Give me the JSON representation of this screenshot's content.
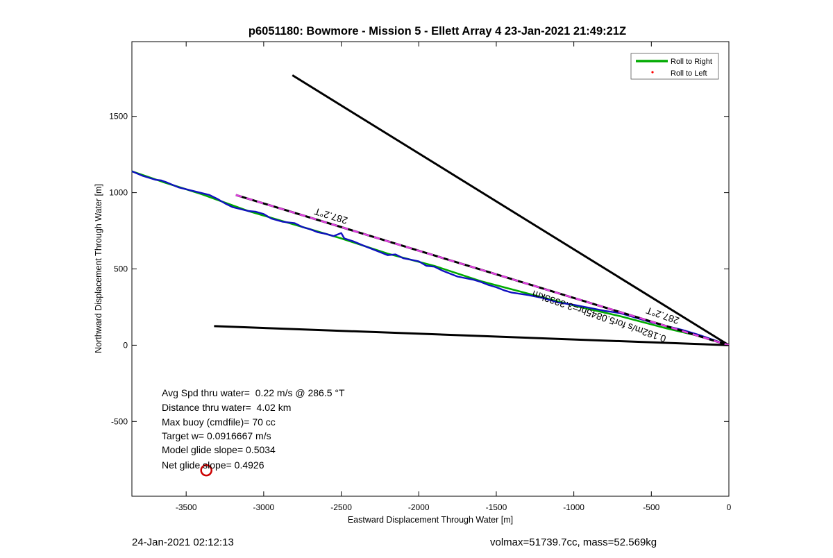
{
  "chart_data": {
    "type": "line",
    "title": "p6051180: Bowmore - Mission 5 - Ellett Array 4 23-Jan-2021 21:49:21Z",
    "xlabel": "Eastward Displacement Through Water [m]",
    "ylabel": "Northward Displacement Through Water [m]",
    "xlim": [
      -3850,
      0
    ],
    "ylim": [
      -990,
      1990
    ],
    "grid": false,
    "xticks": [
      -3500,
      -3000,
      -2500,
      -2000,
      -1500,
      -1000,
      -500,
      0
    ],
    "xtick_labels": [
      "-3500",
      "-3000",
      "-2500",
      "-2000",
      "-1500",
      "-1000",
      "-500",
      "0"
    ],
    "yticks": [
      -500,
      0,
      500,
      1000,
      1500
    ],
    "ytick_labels": [
      "-500",
      "0",
      "500",
      "1000",
      "1500"
    ],
    "legend": {
      "placement": "top-right",
      "entries": [
        {
          "label": "Roll to Right",
          "color": "#00aa00",
          "marker": "line"
        },
        {
          "label": "Roll to Left",
          "color": "#ff0000",
          "marker": "dot"
        }
      ]
    },
    "series": [
      {
        "name": "Roll to Right",
        "color": "#00aa00",
        "points": [
          [
            -3850,
            1140
          ],
          [
            -3650,
            1070
          ],
          [
            -3400,
            990
          ],
          [
            -3100,
            880
          ],
          [
            -2800,
            790
          ],
          [
            -2500,
            700
          ],
          [
            -2200,
            600
          ],
          [
            -1900,
            520
          ],
          [
            -1600,
            420
          ],
          [
            -1300,
            340
          ],
          [
            -1000,
            260
          ],
          [
            -700,
            190
          ],
          [
            -400,
            110
          ],
          [
            -150,
            50
          ],
          [
            0,
            0
          ]
        ]
      },
      {
        "color": "#1010c0",
        "points": [
          [
            -3850,
            1140
          ],
          [
            -3780,
            1110
          ],
          [
            -3700,
            1085
          ],
          [
            -3660,
            1080
          ],
          [
            -3620,
            1065
          ],
          [
            -3550,
            1035
          ],
          [
            -3450,
            1010
          ],
          [
            -3350,
            985
          ],
          [
            -3300,
            960
          ],
          [
            -3250,
            930
          ],
          [
            -3200,
            905
          ],
          [
            -3100,
            880
          ],
          [
            -3050,
            875
          ],
          [
            -3000,
            860
          ],
          [
            -2950,
            830
          ],
          [
            -2880,
            810
          ],
          [
            -2800,
            800
          ],
          [
            -2750,
            775
          ],
          [
            -2700,
            760
          ],
          [
            -2650,
            740
          ],
          [
            -2600,
            730
          ],
          [
            -2550,
            715
          ],
          [
            -2500,
            735
          ],
          [
            -2480,
            700
          ],
          [
            -2420,
            680
          ],
          [
            -2350,
            650
          ],
          [
            -2250,
            610
          ],
          [
            -2200,
            590
          ],
          [
            -2150,
            595
          ],
          [
            -2100,
            570
          ],
          [
            -2000,
            550
          ],
          [
            -1950,
            520
          ],
          [
            -1900,
            515
          ],
          [
            -1850,
            490
          ],
          [
            -1800,
            470
          ],
          [
            -1750,
            450
          ],
          [
            -1650,
            430
          ],
          [
            -1600,
            415
          ],
          [
            -1550,
            395
          ],
          [
            -1500,
            380
          ],
          [
            -1450,
            360
          ],
          [
            -1400,
            345
          ],
          [
            -1300,
            330
          ],
          [
            -1200,
            310
          ],
          [
            -1100,
            280
          ],
          [
            -1000,
            265
          ],
          [
            -900,
            245
          ],
          [
            -800,
            225
          ],
          [
            -700,
            210
          ],
          [
            -600,
            180
          ],
          [
            -500,
            150
          ],
          [
            -400,
            125
          ],
          [
            -300,
            100
          ],
          [
            -200,
            70
          ],
          [
            -100,
            35
          ],
          [
            0,
            0
          ]
        ]
      },
      {
        "color": "#000000",
        "points": [
          [
            -2815,
            1770
          ],
          [
            0,
            0
          ]
        ]
      },
      {
        "color": "#000000",
        "points": [
          [
            -3320,
            125
          ],
          [
            0,
            0
          ]
        ]
      },
      {
        "color": "#000000",
        "dash_overlay_color": "#e040e0",
        "points": [
          [
            -3180,
            985
          ],
          [
            0,
            0
          ]
        ]
      }
    ],
    "markers": [
      {
        "shape": "circle",
        "color": "#cc0000",
        "x": -3370,
        "y": -820
      }
    ],
    "line_annotations": [
      {
        "text": "287.2°T",
        "x": -2560,
        "y": 868
      },
      {
        "text": "287.2°T",
        "x": -420,
        "y": 215
      },
      {
        "text": "0.182m/s for5.0845hr=3.3333km",
        "x": -830,
        "y": 210
      }
    ],
    "stats": [
      "Avg Spd thru water=  0.22 m/s @ 286.5 °T",
      "Distance thru water=  4.02 km",
      "Max buoy (cmdfile)= 70 cc",
      "Target w= 0.0916667 m/s",
      "Model glide slope= 0.5034",
      "Net glide slope= 0.4926"
    ]
  },
  "footer": {
    "left": "24-Jan-2021 02:12:13",
    "right": "volmax=51739.7cc, mass=52.569kg"
  }
}
